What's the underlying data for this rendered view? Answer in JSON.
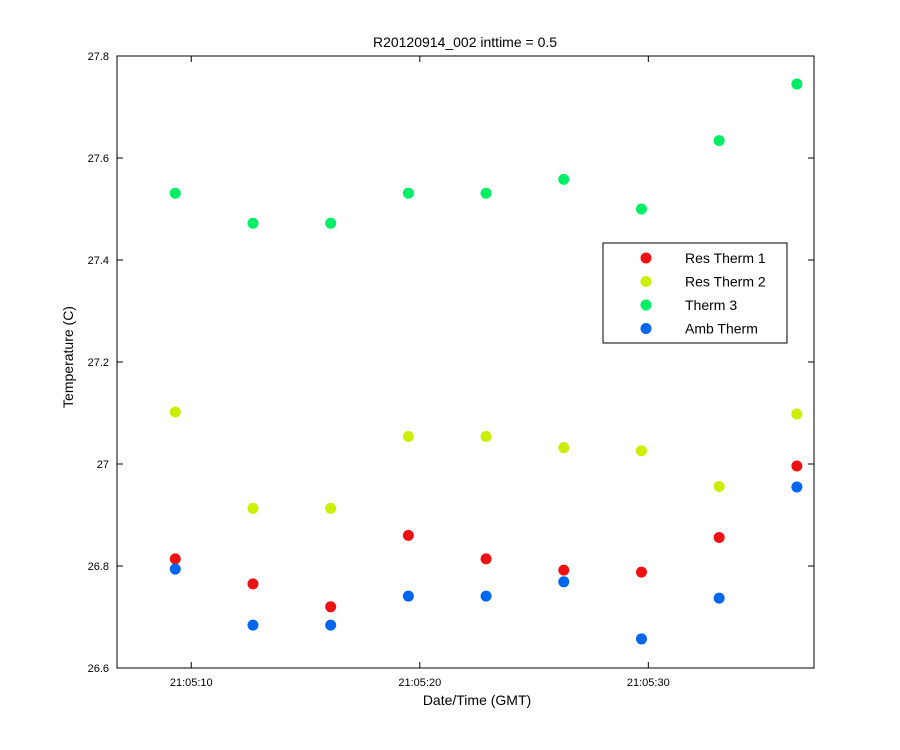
{
  "chart_data": {
    "type": "scatter",
    "title": "R20120914_002 inttime = 0.5",
    "xlabel": "Date/Time (GMT)",
    "ylabel": "Temperature (C)",
    "x_unit": "seconds after 21:05:00",
    "xlim": [
      6.75,
      37.25
    ],
    "ylim": [
      26.6,
      27.8
    ],
    "x_ticks": [
      {
        "value": 10,
        "label": "21:05:10"
      },
      {
        "value": 20,
        "label": "21:05:20"
      },
      {
        "value": 30,
        "label": "21:05:30"
      }
    ],
    "y_ticks": [
      {
        "value": 26.6,
        "label": "26.6"
      },
      {
        "value": 26.8,
        "label": "26.8"
      },
      {
        "value": 27.0,
        "label": "27"
      },
      {
        "value": 27.2,
        "label": "27.2"
      },
      {
        "value": 27.4,
        "label": "27.4"
      },
      {
        "value": 27.6,
        "label": "27.6"
      },
      {
        "value": 27.8,
        "label": "27.8"
      }
    ],
    "grid": false,
    "legend_position": "right-middle",
    "x": [
      9.3,
      12.7,
      16.1,
      19.5,
      22.9,
      26.3,
      29.7,
      33.1,
      36.5
    ],
    "series": [
      {
        "name": "Res Therm 1",
        "color": "#ee1111",
        "values": [
          26.814,
          26.765,
          26.72,
          26.86,
          26.814,
          26.792,
          26.788,
          26.856,
          26.996
        ]
      },
      {
        "name": "Res Therm 2",
        "color": "#ccee00",
        "values": [
          27.102,
          26.913,
          26.913,
          27.054,
          27.054,
          27.032,
          27.026,
          26.956,
          27.098
        ]
      },
      {
        "name": "Therm 3",
        "color": "#00ee66",
        "values": [
          27.531,
          27.472,
          27.472,
          27.531,
          27.531,
          27.558,
          27.5,
          27.634,
          27.745
        ]
      },
      {
        "name": "Amb Therm",
        "color": "#0066ee",
        "values": [
          26.794,
          26.684,
          26.684,
          26.741,
          26.741,
          26.769,
          26.657,
          26.737,
          26.955
        ]
      }
    ]
  }
}
